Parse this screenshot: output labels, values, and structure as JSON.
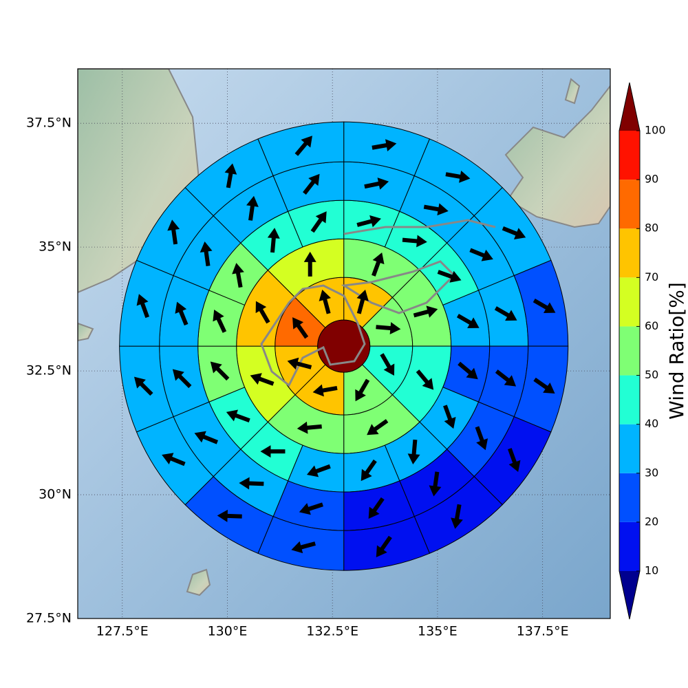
{
  "map": {
    "xlim": [
      126.44,
      139.11
    ],
    "ylim": [
      27.5,
      38.6
    ],
    "xticks": [
      {
        "value": 127.5,
        "label": "127.5°E"
      },
      {
        "value": 130,
        "label": "130°E"
      },
      {
        "value": 132.5,
        "label": "132.5°E"
      },
      {
        "value": 135,
        "label": "135°E"
      },
      {
        "value": 137.5,
        "label": "137.5°E"
      }
    ],
    "yticks": [
      {
        "value": 27.5,
        "label": "27.5°N"
      },
      {
        "value": 30,
        "label": "30°N"
      },
      {
        "value": 32.5,
        "label": "32.5°N"
      },
      {
        "value": 35,
        "label": "35°N"
      },
      {
        "value": 37.5,
        "label": "37.5°N"
      }
    ],
    "grid": true,
    "center": {
      "lon": 132.77,
      "lat": 33.0,
      "value": 105
    },
    "rings": [
      {
        "values": [
          75,
          55,
          45,
          55,
          75,
          75,
          85,
          75
        ],
        "directions": [
          15,
          95,
          150,
          210,
          260,
          285,
          325,
          345
        ]
      },
      {
        "values": [
          55,
          55,
          45,
          55,
          55,
          65,
          75,
          65
        ],
        "directions": [
          20,
          75,
          140,
          235,
          265,
          290,
          330,
          0
        ]
      },
      {
        "values": [
          45,
          45,
          45,
          35,
          25,
          35,
          35,
          35,
          35,
          45,
          45,
          55,
          55,
          55,
          45,
          45
        ],
        "directions": [
          75,
          95,
          110,
          120,
          130,
          160,
          185,
          215,
          250,
          270,
          290,
          315,
          335,
          350,
          5,
          35
        ]
      },
      {
        "values": [
          35,
          35,
          35,
          35,
          25,
          25,
          15,
          15,
          25,
          35,
          35,
          35,
          35,
          35,
          35,
          35
        ],
        "directions": [
          78,
          100,
          112,
          120,
          128,
          160,
          188,
          215,
          252,
          272,
          292,
          315,
          338,
          352,
          8,
          38
        ]
      },
      {
        "values": [
          35,
          35,
          35,
          25,
          25,
          15,
          15,
          15,
          25,
          25,
          35,
          35,
          35,
          35,
          35,
          35
        ],
        "directions": [
          80,
          100,
          112,
          120,
          125,
          160,
          190,
          215,
          255,
          272,
          292,
          315,
          340,
          352,
          10,
          40
        ]
      }
    ],
    "colorbar": {
      "label": "Wind Ratio[%]",
      "ticks": [
        10,
        20,
        30,
        40,
        50,
        60,
        70,
        80,
        90,
        100
      ],
      "colors": [
        "#0010f0",
        "#0050ff",
        "#00b4ff",
        "#22ffd4",
        "#7fff74",
        "#d4ff22",
        "#ffc400",
        "#ff6a00",
        "#ff1200"
      ],
      "under_color": "#00008f",
      "over_color": "#800000"
    }
  }
}
